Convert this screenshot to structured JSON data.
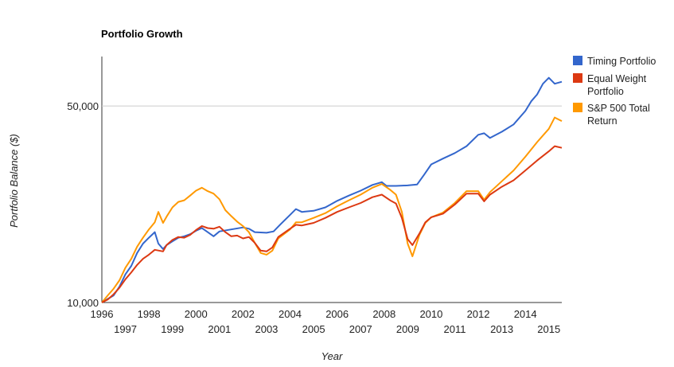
{
  "chart_data": {
    "type": "line",
    "title": "Portfolio Growth",
    "xlabel": "Year",
    "ylabel": "Portfolio Balance ($)",
    "y_scale": "log",
    "ylim": [
      10000,
      75000
    ],
    "xlim": [
      1996.0,
      2015.55
    ],
    "y_ticks": [
      {
        "value": 10000,
        "label": "10,000"
      },
      {
        "value": 50000,
        "label": "50,000"
      }
    ],
    "x_ticks": [
      "1996",
      "1997",
      "1998",
      "1999",
      "2000",
      "2001",
      "2002",
      "2003",
      "2004",
      "2005",
      "2006",
      "2007",
      "2008",
      "2009",
      "2010",
      "2011",
      "2012",
      "2013",
      "2014",
      "2015"
    ],
    "grid": "horizontal",
    "legend_position": "right",
    "series": [
      {
        "name": "Timing Portfolio",
        "color": "#3366cc",
        "points": [
          [
            1996.0,
            10000
          ],
          [
            1996.25,
            10300
          ],
          [
            1996.5,
            10600
          ],
          [
            1996.75,
            11400
          ],
          [
            1997.0,
            12600
          ],
          [
            1997.25,
            13500
          ],
          [
            1997.5,
            15000
          ],
          [
            1997.75,
            16200
          ],
          [
            1998.0,
            17000
          ],
          [
            1998.25,
            17800
          ],
          [
            1998.4,
            16200
          ],
          [
            1998.6,
            15500
          ],
          [
            1998.75,
            16000
          ],
          [
            1999.0,
            16500
          ],
          [
            1999.25,
            17000
          ],
          [
            1999.5,
            17200
          ],
          [
            1999.75,
            17500
          ],
          [
            2000.0,
            18000
          ],
          [
            2000.25,
            18400
          ],
          [
            2000.5,
            17800
          ],
          [
            2000.75,
            17200
          ],
          [
            2001.0,
            17900
          ],
          [
            2001.5,
            18200
          ],
          [
            2002.0,
            18500
          ],
          [
            2002.25,
            18300
          ],
          [
            2002.5,
            17800
          ],
          [
            2003.0,
            17700
          ],
          [
            2003.3,
            17900
          ],
          [
            2003.6,
            19000
          ],
          [
            2004.0,
            20500
          ],
          [
            2004.25,
            21500
          ],
          [
            2004.5,
            21000
          ],
          [
            2005.0,
            21200
          ],
          [
            2005.5,
            21800
          ],
          [
            2006.0,
            23000
          ],
          [
            2006.5,
            24000
          ],
          [
            2007.0,
            25000
          ],
          [
            2007.5,
            26200
          ],
          [
            2007.9,
            26800
          ],
          [
            2008.1,
            26000
          ],
          [
            2008.5,
            26000
          ],
          [
            2009.0,
            26100
          ],
          [
            2009.4,
            26300
          ],
          [
            2009.7,
            28500
          ],
          [
            2010.0,
            31000
          ],
          [
            2010.5,
            32500
          ],
          [
            2011.0,
            34000
          ],
          [
            2011.5,
            36000
          ],
          [
            2012.0,
            39500
          ],
          [
            2012.25,
            40000
          ],
          [
            2012.5,
            38500
          ],
          [
            2013.0,
            40500
          ],
          [
            2013.5,
            43000
          ],
          [
            2014.0,
            48000
          ],
          [
            2014.25,
            52000
          ],
          [
            2014.5,
            55000
          ],
          [
            2014.75,
            60000
          ],
          [
            2015.0,
            63000
          ],
          [
            2015.25,
            60000
          ],
          [
            2015.55,
            61000
          ]
        ]
      },
      {
        "name": "Equal Weight Portfolio",
        "color": "#dc3912",
        "points": [
          [
            1996.0,
            10000
          ],
          [
            1996.25,
            10250
          ],
          [
            1996.5,
            10700
          ],
          [
            1996.75,
            11300
          ],
          [
            1997.0,
            12100
          ],
          [
            1997.25,
            12800
          ],
          [
            1997.5,
            13600
          ],
          [
            1997.75,
            14300
          ],
          [
            1998.0,
            14800
          ],
          [
            1998.25,
            15400
          ],
          [
            1998.6,
            15200
          ],
          [
            1998.75,
            16000
          ],
          [
            1999.0,
            16700
          ],
          [
            1999.25,
            17100
          ],
          [
            1999.5,
            17000
          ],
          [
            1999.75,
            17400
          ],
          [
            2000.0,
            18100
          ],
          [
            2000.25,
            18700
          ],
          [
            2000.5,
            18400
          ],
          [
            2000.75,
            18300
          ],
          [
            2001.0,
            18600
          ],
          [
            2001.25,
            17800
          ],
          [
            2001.5,
            17200
          ],
          [
            2001.75,
            17300
          ],
          [
            2002.0,
            16900
          ],
          [
            2002.25,
            17100
          ],
          [
            2002.5,
            16300
          ],
          [
            2002.75,
            15300
          ],
          [
            2003.0,
            15200
          ],
          [
            2003.25,
            15700
          ],
          [
            2003.5,
            17100
          ],
          [
            2004.0,
            18300
          ],
          [
            2004.25,
            18900
          ],
          [
            2004.5,
            18800
          ],
          [
            2005.0,
            19200
          ],
          [
            2005.5,
            20000
          ],
          [
            2006.0,
            21000
          ],
          [
            2006.5,
            21800
          ],
          [
            2007.0,
            22600
          ],
          [
            2007.5,
            23700
          ],
          [
            2007.9,
            24200
          ],
          [
            2008.25,
            23100
          ],
          [
            2008.5,
            22500
          ],
          [
            2008.75,
            20000
          ],
          [
            2009.0,
            16800
          ],
          [
            2009.2,
            16000
          ],
          [
            2009.5,
            17600
          ],
          [
            2009.75,
            19300
          ],
          [
            2010.0,
            20100
          ],
          [
            2010.5,
            20700
          ],
          [
            2011.0,
            22300
          ],
          [
            2011.5,
            24400
          ],
          [
            2012.0,
            24400
          ],
          [
            2012.25,
            22900
          ],
          [
            2012.5,
            24200
          ],
          [
            2013.0,
            25800
          ],
          [
            2013.5,
            27200
          ],
          [
            2014.0,
            29500
          ],
          [
            2014.5,
            32000
          ],
          [
            2015.0,
            34500
          ],
          [
            2015.25,
            36000
          ],
          [
            2015.55,
            35500
          ]
        ]
      },
      {
        "name": "S&P 500 Total Return",
        "color": "#ff9900",
        "points": [
          [
            1996.0,
            10000
          ],
          [
            1996.25,
            10600
          ],
          [
            1996.5,
            11200
          ],
          [
            1996.75,
            12000
          ],
          [
            1997.0,
            13300
          ],
          [
            1997.25,
            14300
          ],
          [
            1997.5,
            15800
          ],
          [
            1997.75,
            17000
          ],
          [
            1998.0,
            18200
          ],
          [
            1998.25,
            19300
          ],
          [
            1998.4,
            21000
          ],
          [
            1998.6,
            19200
          ],
          [
            1998.75,
            20200
          ],
          [
            1999.0,
            21800
          ],
          [
            1999.25,
            22800
          ],
          [
            1999.5,
            23100
          ],
          [
            1999.75,
            24000
          ],
          [
            2000.0,
            25000
          ],
          [
            2000.25,
            25600
          ],
          [
            2000.5,
            24900
          ],
          [
            2000.75,
            24400
          ],
          [
            2001.0,
            23300
          ],
          [
            2001.25,
            21300
          ],
          [
            2001.5,
            20300
          ],
          [
            2001.75,
            19400
          ],
          [
            2002.0,
            18700
          ],
          [
            2002.25,
            17800
          ],
          [
            2002.5,
            16300
          ],
          [
            2002.75,
            15000
          ],
          [
            2003.0,
            14800
          ],
          [
            2003.25,
            15300
          ],
          [
            2003.5,
            16900
          ],
          [
            2004.0,
            18200
          ],
          [
            2004.25,
            19300
          ],
          [
            2004.5,
            19300
          ],
          [
            2005.0,
            20000
          ],
          [
            2005.5,
            20800
          ],
          [
            2006.0,
            22000
          ],
          [
            2006.5,
            23100
          ],
          [
            2007.0,
            24200
          ],
          [
            2007.5,
            25600
          ],
          [
            2007.9,
            26400
          ],
          [
            2008.25,
            25200
          ],
          [
            2008.5,
            24200
          ],
          [
            2008.75,
            21000
          ],
          [
            2009.0,
            16200
          ],
          [
            2009.2,
            14600
          ],
          [
            2009.5,
            17400
          ],
          [
            2009.75,
            19200
          ],
          [
            2010.0,
            20100
          ],
          [
            2010.5,
            20900
          ],
          [
            2011.0,
            22600
          ],
          [
            2011.5,
            24900
          ],
          [
            2012.0,
            24900
          ],
          [
            2012.25,
            23200
          ],
          [
            2012.5,
            24700
          ],
          [
            2013.0,
            27000
          ],
          [
            2013.5,
            29500
          ],
          [
            2014.0,
            33000
          ],
          [
            2014.5,
            37200
          ],
          [
            2015.0,
            41500
          ],
          [
            2015.25,
            45500
          ],
          [
            2015.55,
            44200
          ]
        ]
      }
    ]
  }
}
